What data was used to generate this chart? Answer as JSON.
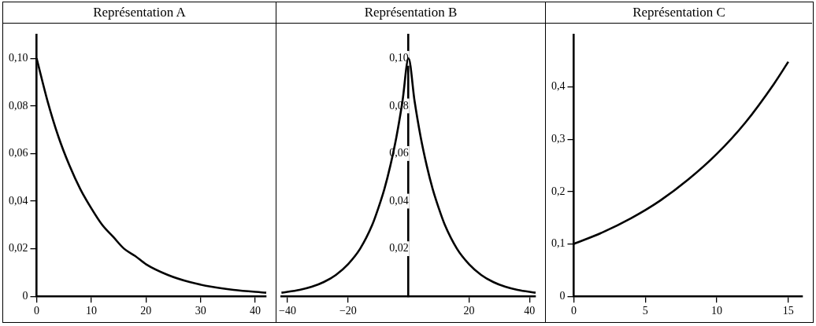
{
  "chart_data": [
    {
      "type": "line",
      "title": "Représentation A",
      "x": [
        0,
        2,
        4,
        6,
        8,
        10,
        12,
        14,
        16,
        18,
        20,
        24,
        28,
        32,
        36,
        42
      ],
      "values": [
        0.1,
        0.082,
        0.067,
        0.055,
        0.045,
        0.037,
        0.03,
        0.025,
        0.02,
        0.017,
        0.0135,
        0.009,
        0.006,
        0.004,
        0.0027,
        0.0015
      ],
      "color": "#000000",
      "xlim": [
        0,
        42
      ],
      "ylim": [
        0,
        0.11
      ],
      "xticks": [
        0,
        10,
        20,
        30,
        40
      ],
      "yticks": [
        0,
        {
          "value": 0.02,
          "label": "0,02"
        },
        {
          "value": 0.04,
          "label": "0,04"
        },
        {
          "value": 0.06,
          "label": "0,06"
        },
        {
          "value": 0.08,
          "label": "0,08"
        },
        {
          "value": 0.1,
          "label": "0,10"
        }
      ],
      "grid": false,
      "line_style": "solid",
      "marker": "none"
    },
    {
      "type": "line",
      "title": "Représentation B",
      "x": [
        -42,
        -36,
        -32,
        -28,
        -24,
        -20,
        -16,
        -12,
        -10,
        -8,
        -6,
        -4,
        -2,
        0,
        2,
        4,
        6,
        8,
        10,
        12,
        16,
        20,
        24,
        28,
        32,
        36,
        42
      ],
      "values": [
        0.0015,
        0.0027,
        0.004,
        0.006,
        0.009,
        0.0135,
        0.02,
        0.03,
        0.037,
        0.045,
        0.055,
        0.067,
        0.082,
        0.1,
        0.082,
        0.067,
        0.055,
        0.045,
        0.037,
        0.03,
        0.02,
        0.0135,
        0.009,
        0.006,
        0.004,
        0.0027,
        0.0015
      ],
      "color": "#000000",
      "xlim": [
        -42,
        42
      ],
      "ylim": [
        0,
        0.11
      ],
      "xticks": [
        {
          "value": -40,
          "label": "−40"
        },
        {
          "value": -20,
          "label": "−20"
        },
        20,
        40
      ],
      "yticks": [
        {
          "value": 0.02,
          "label": "0,02"
        },
        {
          "value": 0.04,
          "label": "0,04"
        },
        {
          "value": 0.06,
          "label": "0,06"
        },
        {
          "value": 0.08,
          "label": "0,08"
        },
        {
          "value": 0.1,
          "label": "0,10"
        }
      ],
      "grid": false,
      "line_style": "solid",
      "marker": "none"
    },
    {
      "type": "line",
      "title": "Représentation C",
      "x": [
        0,
        2,
        4,
        6,
        8,
        10,
        12,
        14,
        15
      ],
      "values": [
        0.1,
        0.122,
        0.149,
        0.182,
        0.223,
        0.272,
        0.332,
        0.406,
        0.448
      ],
      "color": "#000000",
      "xlim": [
        0,
        16
      ],
      "ylim": [
        0,
        0.5
      ],
      "xticks": [
        0,
        5,
        10,
        15
      ],
      "yticks": [
        0,
        {
          "value": 0.1,
          "label": "0,1"
        },
        {
          "value": 0.2,
          "label": "0,2"
        },
        {
          "value": 0.3,
          "label": "0,3"
        },
        {
          "value": 0.4,
          "label": "0,4"
        }
      ],
      "grid": false,
      "line_style": "solid",
      "marker": "none"
    }
  ]
}
